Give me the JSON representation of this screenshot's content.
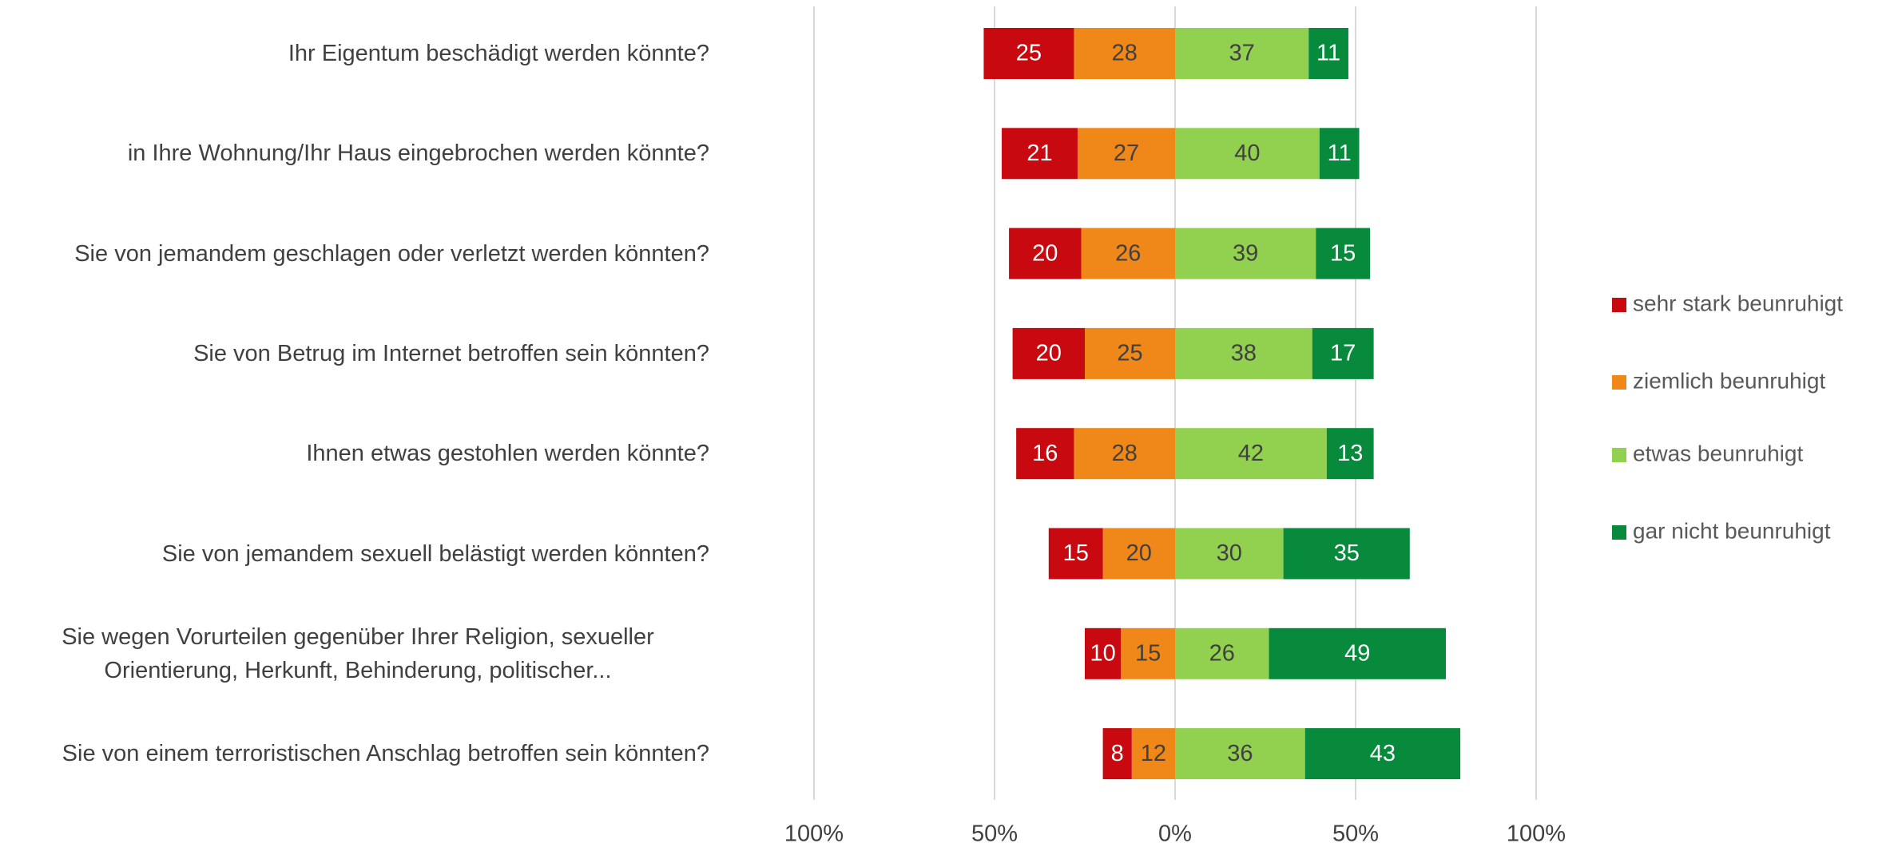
{
  "chart_data": {
    "type": "diverging_bar",
    "categories": [
      "Ihr Eigentum beschädigt werden könnte?",
      "in Ihre Wohnung/Ihr Haus eingebrochen werden könnte?",
      "Sie von jemandem geschlagen oder verletzt werden könnten?",
      "Sie von Betrug im Internet betroffen sein könnten?",
      "Ihnen etwas gestohlen werden könnte?",
      "Sie von jemandem sexuell belästigt werden könnten?",
      "Sie wegen Vorurteilen gegenüber Ihrer Religion, sexueller Orientierung, Herkunft, Behinderung, politischer...",
      "Sie von einem terroristischen Anschlag betroffen sein könnten?"
    ],
    "series": [
      {
        "name": "sehr stark beunruhigt",
        "color": "#c8090f",
        "label_color": "#ffffff",
        "values": [
          25,
          21,
          20,
          20,
          16,
          15,
          10,
          8
        ]
      },
      {
        "name": "ziemlich beunruhigt",
        "color": "#ef8719",
        "label_color": "#404040",
        "values": [
          28,
          27,
          26,
          25,
          28,
          20,
          15,
          12
        ]
      },
      {
        "name": "etwas beunruhigt",
        "color": "#92d050",
        "label_color": "#404040",
        "values": [
          37,
          40,
          39,
          38,
          42,
          30,
          26,
          36
        ]
      },
      {
        "name": "gar nicht beunruhigt",
        "color": "#078a3c",
        "label_color": "#ffffff",
        "values": [
          11,
          11,
          15,
          17,
          13,
          35,
          49,
          43
        ]
      }
    ],
    "xlim": [
      -100,
      100
    ],
    "xticks": [
      {
        "value": -100,
        "label": "100%"
      },
      {
        "value": -50,
        "label": "50%"
      },
      {
        "value": 0,
        "label": "0%"
      },
      {
        "value": 50,
        "label": "50%"
      },
      {
        "value": 100,
        "label": "100%"
      }
    ],
    "grid": true,
    "legend": "right"
  }
}
